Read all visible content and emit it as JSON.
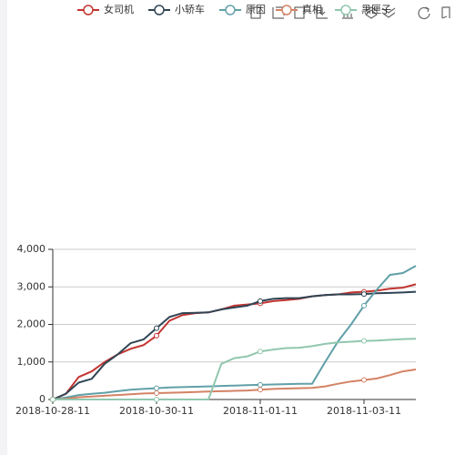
{
  "chart_data": {
    "type": "line",
    "categories": [
      "2018-10-28-11",
      null,
      null,
      null,
      null,
      null,
      null,
      null,
      "2018-10-30-11",
      null,
      null,
      null,
      null,
      null,
      null,
      null,
      "2018-11-01-11",
      null,
      null,
      null,
      null,
      null,
      null,
      null,
      "2018-11-03-11",
      null,
      null,
      null,
      null
    ],
    "series": [
      {
        "name": "女司机",
        "color": "#c23531",
        "values": [
          0,
          150,
          600,
          750,
          1000,
          1200,
          1350,
          1450,
          1700,
          2100,
          2250,
          2300,
          2320,
          2400,
          2500,
          2530,
          2560,
          2620,
          2650,
          2680,
          2750,
          2780,
          2800,
          2850,
          2870,
          2900,
          2950,
          2980,
          3070
        ]
      },
      {
        "name": "小轿车",
        "color": "#2f4554",
        "values": [
          0,
          150,
          450,
          550,
          950,
          1200,
          1500,
          1600,
          1900,
          2200,
          2300,
          2310,
          2320,
          2400,
          2450,
          2500,
          2620,
          2680,
          2700,
          2700,
          2750,
          2780,
          2800,
          2800,
          2810,
          2830,
          2840,
          2850,
          2870
        ]
      },
      {
        "name": "原因",
        "color": "#61a0a8",
        "values": [
          0,
          50,
          120,
          150,
          180,
          220,
          260,
          280,
          300,
          320,
          330,
          340,
          350,
          360,
          370,
          380,
          390,
          400,
          410,
          420,
          420,
          1000,
          1550,
          2000,
          2500,
          2930,
          3320,
          3370,
          3560
        ]
      },
      {
        "name": "真相",
        "color": "#d48265",
        "values": [
          0,
          20,
          60,
          80,
          100,
          120,
          140,
          160,
          170,
          180,
          190,
          200,
          210,
          220,
          230,
          240,
          260,
          280,
          290,
          300,
          310,
          350,
          420,
          480,
          520,
          560,
          650,
          750,
          800
        ]
      },
      {
        "name": "黑匣子",
        "color": "#91c7ae",
        "values": [
          0,
          0,
          0,
          0,
          0,
          0,
          0,
          0,
          0,
          0,
          0,
          0,
          0,
          950,
          1100,
          1150,
          1280,
          1330,
          1370,
          1380,
          1420,
          1480,
          1520,
          1540,
          1560,
          1570,
          1590,
          1610,
          1620
        ]
      }
    ],
    "ylim": [
      0,
      4000
    ],
    "yticks": [
      0,
      {
        "value": 1000,
        "label": "1,000"
      },
      {
        "value": 2000,
        "label": "2,000"
      },
      {
        "value": 3000,
        "label": "3,000"
      },
      {
        "value": 4000,
        "label": "4,000"
      }
    ],
    "grid": true
  }
}
